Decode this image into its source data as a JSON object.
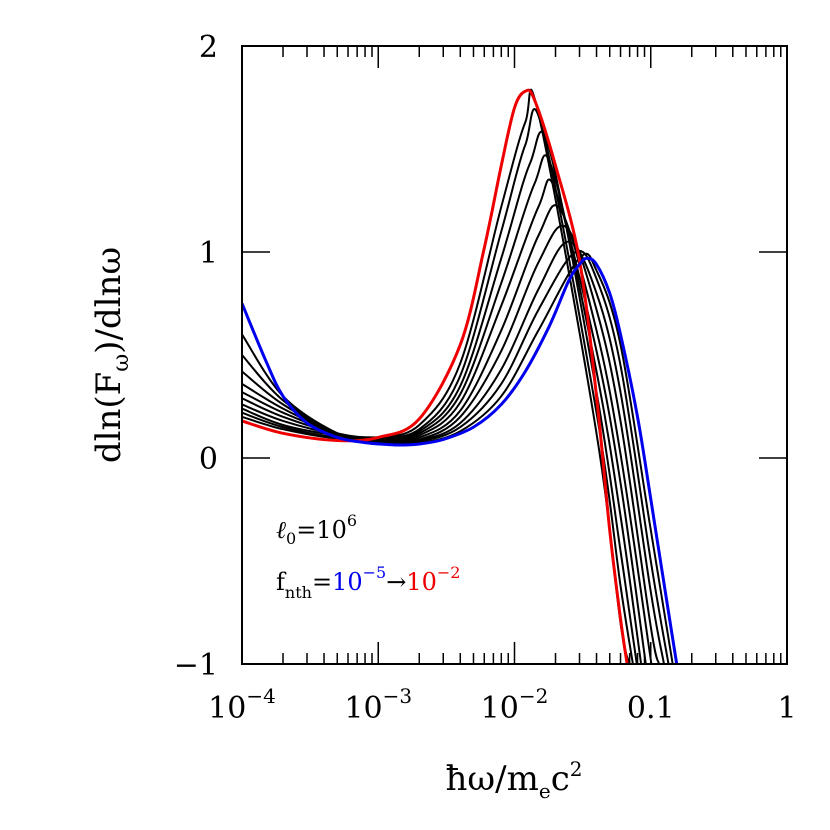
{
  "chart_data": {
    "type": "line",
    "xlabel": "ħω/m",
    "xlabel_sub": "e",
    "xlabel_tail": "c",
    "xlabel_sup": "2",
    "ylabel": "dln(F",
    "ylabel_sub": "ω",
    "ylabel_tail": ")/dlnω",
    "x_scale": "log",
    "xlim": [
      0.0001,
      1
    ],
    "ylim": [
      -1,
      2
    ],
    "x_ticks": [
      {
        "value": 0.0001,
        "base": "10",
        "exp": "−4"
      },
      {
        "value": 0.001,
        "base": "10",
        "exp": "−3"
      },
      {
        "value": 0.01,
        "base": "10",
        "exp": "−2"
      },
      {
        "value": 0.1,
        "base": "0.1",
        "exp": ""
      },
      {
        "value": 1,
        "base": "1",
        "exp": ""
      }
    ],
    "y_ticks": [
      {
        "value": -1,
        "label": "−1"
      },
      {
        "value": 0,
        "label": "0"
      },
      {
        "value": 1,
        "label": "1"
      },
      {
        "value": 2,
        "label": "2"
      }
    ],
    "grid": false,
    "annotations": {
      "l0_symbol": "ℓ",
      "l0_sub": "0",
      "l0_text": "=10",
      "l0_sup": "6",
      "f_main": "f",
      "f_sub": "nth",
      "f_eq": "=",
      "f_low_base": "10",
      "f_low_exp": "−5",
      "f_arrow": "→",
      "f_high_base": "10",
      "f_high_exp": "−2"
    },
    "colors": {
      "low": "#0000ee",
      "high": "#ee0000",
      "middle": "#000000"
    },
    "series": [
      {
        "color": "#0000ee",
        "points": [
          [
            0.0001,
            0.75
          ],
          [
            0.00015,
            0.47
          ],
          [
            0.0002,
            0.3
          ],
          [
            0.0003,
            0.17
          ],
          [
            0.0005,
            0.1
          ],
          [
            0.0008,
            0.075
          ],
          [
            0.0012,
            0.065
          ],
          [
            0.0015,
            0.063
          ],
          [
            0.002,
            0.068
          ],
          [
            0.003,
            0.09
          ],
          [
            0.005,
            0.15
          ],
          [
            0.008,
            0.26
          ],
          [
            0.012,
            0.42
          ],
          [
            0.018,
            0.64
          ],
          [
            0.025,
            0.86
          ],
          [
            0.03,
            0.94
          ],
          [
            0.034,
            0.97
          ],
          [
            0.04,
            0.94
          ],
          [
            0.05,
            0.8
          ],
          [
            0.06,
            0.6
          ],
          [
            0.08,
            0.2
          ],
          [
            0.1,
            -0.2
          ],
          [
            0.13,
            -0.68
          ],
          [
            0.155,
            -1.0
          ]
        ]
      },
      {
        "color": "#000000",
        "points": [
          [
            0.0001,
            0.6
          ],
          [
            0.0002,
            0.3
          ],
          [
            0.0005,
            0.12
          ],
          [
            0.001,
            0.07
          ],
          [
            0.002,
            0.073
          ],
          [
            0.004,
            0.13
          ],
          [
            0.008,
            0.3
          ],
          [
            0.015,
            0.62
          ],
          [
            0.03,
            0.97
          ],
          [
            0.04,
            0.91
          ],
          [
            0.06,
            0.55
          ],
          [
            0.1,
            -0.35
          ],
          [
            0.145,
            -1.0
          ]
        ]
      },
      {
        "color": "#000000",
        "points": [
          [
            0.0001,
            0.5
          ],
          [
            0.0002,
            0.28
          ],
          [
            0.0005,
            0.12
          ],
          [
            0.001,
            0.075
          ],
          [
            0.002,
            0.08
          ],
          [
            0.004,
            0.15
          ],
          [
            0.008,
            0.36
          ],
          [
            0.015,
            0.72
          ],
          [
            0.028,
            1.0
          ],
          [
            0.04,
            0.87
          ],
          [
            0.06,
            0.45
          ],
          [
            0.1,
            -0.5
          ],
          [
            0.135,
            -1.0
          ]
        ]
      },
      {
        "color": "#000000",
        "points": [
          [
            0.0001,
            0.42
          ],
          [
            0.0002,
            0.26
          ],
          [
            0.0005,
            0.12
          ],
          [
            0.001,
            0.08
          ],
          [
            0.002,
            0.085
          ],
          [
            0.004,
            0.17
          ],
          [
            0.008,
            0.43
          ],
          [
            0.015,
            0.82
          ],
          [
            0.025,
            1.05
          ],
          [
            0.04,
            0.8
          ],
          [
            0.06,
            0.32
          ],
          [
            0.1,
            -0.65
          ],
          [
            0.125,
            -1.0
          ]
        ]
      },
      {
        "color": "#000000",
        "points": [
          [
            0.0001,
            0.36
          ],
          [
            0.0002,
            0.24
          ],
          [
            0.0005,
            0.12
          ],
          [
            0.001,
            0.085
          ],
          [
            0.002,
            0.09
          ],
          [
            0.004,
            0.2
          ],
          [
            0.008,
            0.52
          ],
          [
            0.015,
            0.95
          ],
          [
            0.024,
            1.12
          ],
          [
            0.04,
            0.72
          ],
          [
            0.06,
            0.18
          ],
          [
            0.1,
            -0.82
          ],
          [
            0.115,
            -1.0
          ]
        ]
      },
      {
        "color": "#000000",
        "points": [
          [
            0.0001,
            0.32
          ],
          [
            0.0002,
            0.22
          ],
          [
            0.0005,
            0.12
          ],
          [
            0.001,
            0.09
          ],
          [
            0.002,
            0.1
          ],
          [
            0.004,
            0.23
          ],
          [
            0.008,
            0.62
          ],
          [
            0.015,
            1.08
          ],
          [
            0.022,
            1.2
          ],
          [
            0.04,
            0.62
          ],
          [
            0.06,
            0.02
          ],
          [
            0.1,
            -0.98
          ],
          [
            0.101,
            -1.0
          ]
        ]
      },
      {
        "color": "#000000",
        "points": [
          [
            0.0001,
            0.29
          ],
          [
            0.0002,
            0.2
          ],
          [
            0.0005,
            0.12
          ],
          [
            0.001,
            0.095
          ],
          [
            0.002,
            0.11
          ],
          [
            0.004,
            0.27
          ],
          [
            0.008,
            0.74
          ],
          [
            0.015,
            1.22
          ],
          [
            0.02,
            1.3
          ],
          [
            0.04,
            0.52
          ],
          [
            0.06,
            -0.12
          ],
          [
            0.092,
            -1.0
          ]
        ]
      },
      {
        "color": "#000000",
        "points": [
          [
            0.0001,
            0.26
          ],
          [
            0.0002,
            0.18
          ],
          [
            0.0005,
            0.115
          ],
          [
            0.001,
            0.1
          ],
          [
            0.002,
            0.12
          ],
          [
            0.004,
            0.31
          ],
          [
            0.008,
            0.85
          ],
          [
            0.014,
            1.33
          ],
          [
            0.019,
            1.4
          ],
          [
            0.04,
            0.42
          ],
          [
            0.06,
            -0.28
          ],
          [
            0.085,
            -1.0
          ]
        ]
      },
      {
        "color": "#000000",
        "points": [
          [
            0.0001,
            0.24
          ],
          [
            0.0002,
            0.16
          ],
          [
            0.0005,
            0.11
          ],
          [
            0.001,
            0.1
          ],
          [
            0.002,
            0.13
          ],
          [
            0.004,
            0.35
          ],
          [
            0.008,
            0.97
          ],
          [
            0.013,
            1.43
          ],
          [
            0.018,
            1.5
          ],
          [
            0.04,
            0.32
          ],
          [
            0.06,
            -0.45
          ],
          [
            0.079,
            -1.0
          ]
        ]
      },
      {
        "color": "#000000",
        "points": [
          [
            0.0001,
            0.22
          ],
          [
            0.0002,
            0.15
          ],
          [
            0.0005,
            0.1
          ],
          [
            0.001,
            0.1
          ],
          [
            0.002,
            0.14
          ],
          [
            0.004,
            0.4
          ],
          [
            0.008,
            1.1
          ],
          [
            0.012,
            1.52
          ],
          [
            0.016,
            1.6
          ],
          [
            0.04,
            0.22
          ],
          [
            0.06,
            -0.62
          ],
          [
            0.074,
            -1.0
          ]
        ]
      },
      {
        "color": "#000000",
        "points": [
          [
            0.0001,
            0.2
          ],
          [
            0.0002,
            0.14
          ],
          [
            0.0005,
            0.095
          ],
          [
            0.001,
            0.1
          ],
          [
            0.002,
            0.16
          ],
          [
            0.004,
            0.46
          ],
          [
            0.008,
            1.22
          ],
          [
            0.012,
            1.63
          ],
          [
            0.015,
            1.67
          ],
          [
            0.04,
            0.12
          ],
          [
            0.06,
            -0.8
          ],
          [
            0.07,
            -1.0
          ]
        ]
      },
      {
        "color": "#ee0000",
        "points": [
          [
            0.0001,
            0.18
          ],
          [
            0.0002,
            0.12
          ],
          [
            0.0005,
            0.085
          ],
          [
            0.001,
            0.1
          ],
          [
            0.002,
            0.19
          ],
          [
            0.004,
            0.55
          ],
          [
            0.006,
            1.02
          ],
          [
            0.008,
            1.42
          ],
          [
            0.01,
            1.7
          ],
          [
            0.012,
            1.78
          ],
          [
            0.014,
            1.74
          ],
          [
            0.02,
            1.42
          ],
          [
            0.03,
            0.96
          ],
          [
            0.04,
            0.3
          ],
          [
            0.05,
            -0.35
          ],
          [
            0.06,
            -0.78
          ],
          [
            0.067,
            -1.0
          ]
        ]
      }
    ]
  }
}
